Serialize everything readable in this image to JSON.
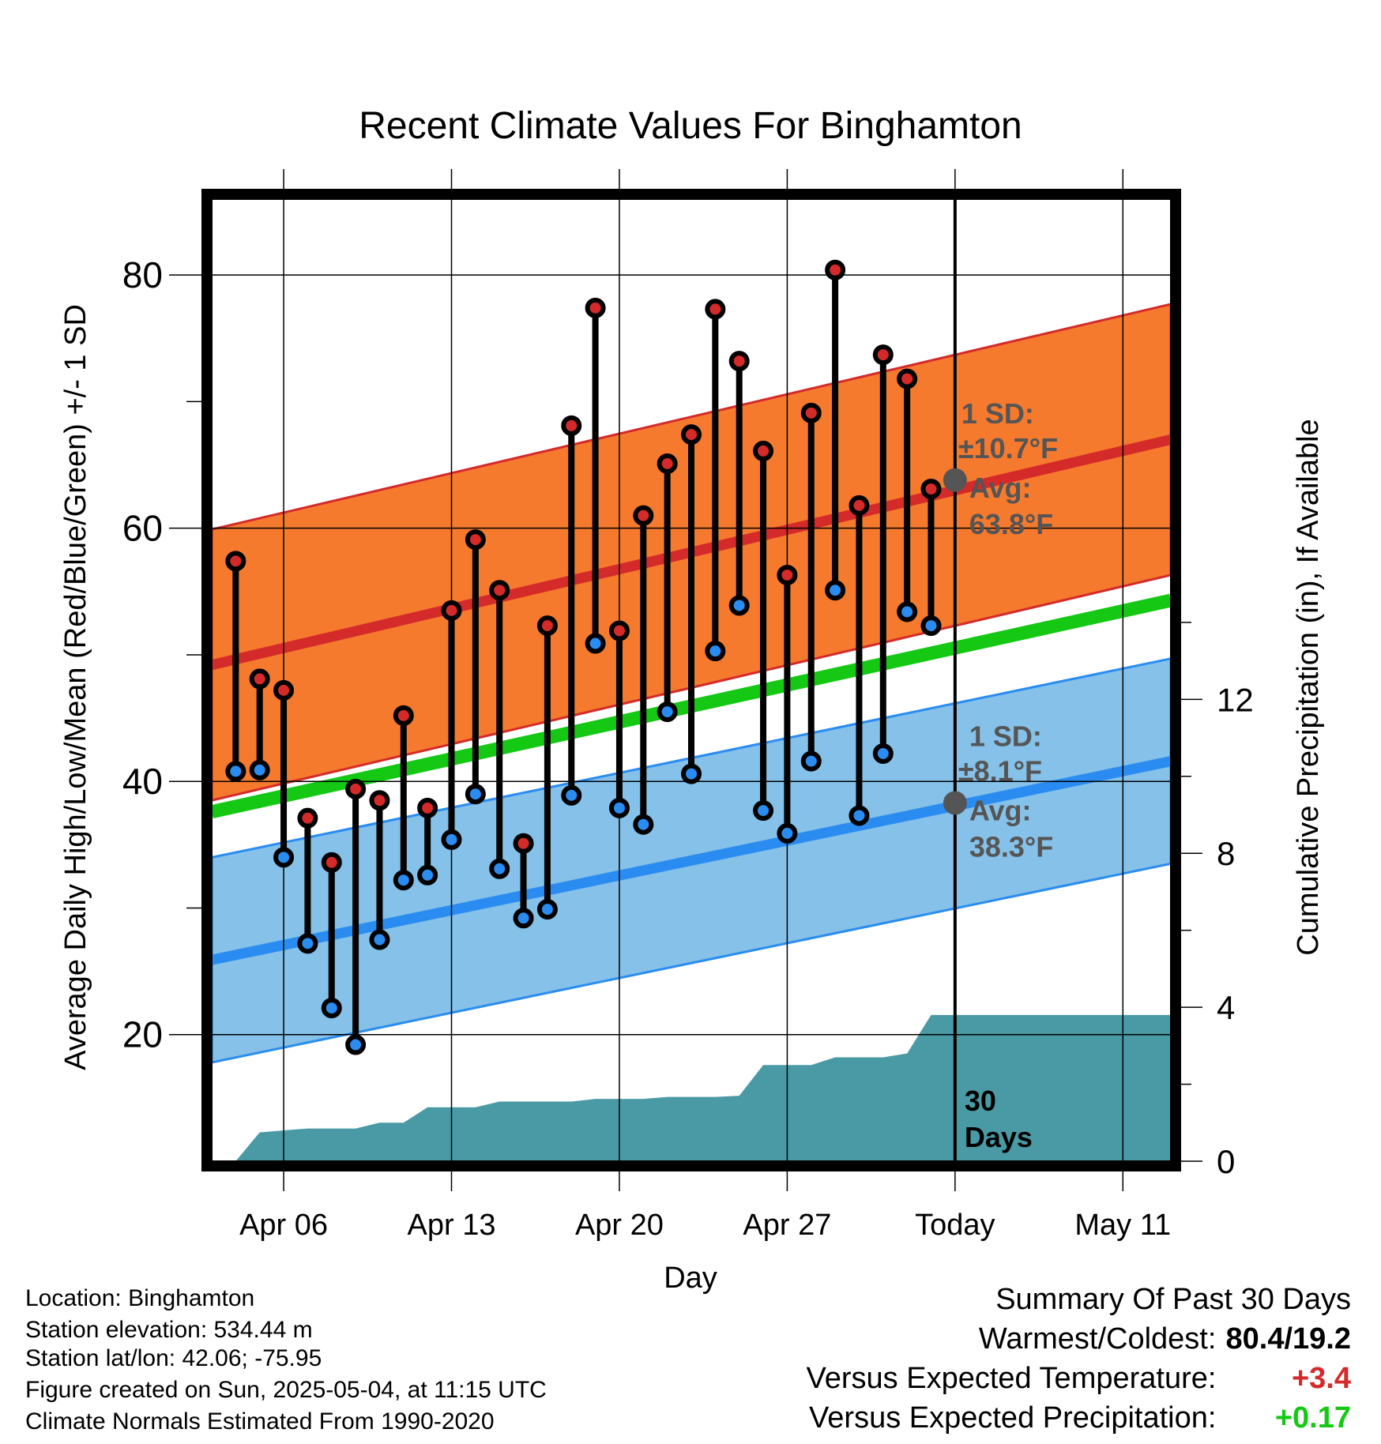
{
  "chart_data": {
    "type": "line",
    "title": "Recent Climate Values For Binghamton",
    "xlabel": "Day",
    "ylabel_left": "Average Daily High/Low/Mean (Red/Blue/Green) +/- 1 SD",
    "ylabel_right": "Cumulative Precipitation (in), If Available",
    "x_tick_labels": [
      "Apr 06",
      "Apr 13",
      "Apr 20",
      "Apr 27",
      "Today",
      "May 11"
    ],
    "x_tick_dates": [
      "2025-04-06",
      "2025-04-13",
      "2025-04-20",
      "2025-04-27",
      "2025-05-04",
      "2025-05-11"
    ],
    "xlim": [
      "2025-04-03",
      "2025-05-13"
    ],
    "ylim_left": [
      10,
      86
    ],
    "yticks_left": [
      20,
      40,
      60,
      80
    ],
    "ylim_right": [
      0,
      25
    ],
    "yticks_right": [
      0,
      4,
      8,
      12
    ],
    "grid": true,
    "today_label": "30\nDays",
    "observed": {
      "dates": [
        "2025-04-04",
        "2025-04-05",
        "2025-04-06",
        "2025-04-07",
        "2025-04-08",
        "2025-04-09",
        "2025-04-10",
        "2025-04-11",
        "2025-04-12",
        "2025-04-13",
        "2025-04-14",
        "2025-04-15",
        "2025-04-16",
        "2025-04-17",
        "2025-04-18",
        "2025-04-19",
        "2025-04-20",
        "2025-04-21",
        "2025-04-22",
        "2025-04-23",
        "2025-04-24",
        "2025-04-25",
        "2025-04-26",
        "2025-04-27",
        "2025-04-28",
        "2025-04-29",
        "2025-04-30",
        "2025-05-01",
        "2025-05-02",
        "2025-05-03"
      ],
      "high": [
        57.4,
        48.1,
        47.2,
        37.1,
        33.6,
        39.4,
        38.5,
        45.2,
        37.9,
        53.5,
        59.1,
        55.1,
        35.1,
        52.3,
        68.1,
        77.4,
        51.9,
        61.0,
        65.1,
        67.4,
        77.3,
        73.2,
        66.1,
        56.3,
        69.1,
        80.4,
        61.8,
        73.7,
        71.8,
        63.1
      ],
      "low": [
        40.8,
        40.9,
        34.0,
        27.2,
        22.1,
        19.2,
        27.5,
        32.2,
        32.6,
        35.4,
        39.0,
        33.1,
        29.2,
        29.9,
        38.9,
        50.9,
        37.9,
        36.6,
        45.5,
        40.6,
        50.3,
        53.9,
        37.7,
        35.9,
        41.6,
        55.1,
        37.3,
        42.2,
        53.4,
        52.3
      ]
    },
    "normals": {
      "dates": [
        "2025-04-03",
        "2025-05-13"
      ],
      "high_mean": [
        49.2,
        67.0
      ],
      "high_sd": 10.7,
      "low_mean": [
        25.9,
        41.6
      ],
      "low_sd": 8.1,
      "mean": [
        37.6,
        54.3
      ]
    },
    "annotations": [
      {
        "sd_label": "1 SD:",
        "sd_value": "±10.7°F",
        "avg_label": "Avg:",
        "avg_value": "63.8°F",
        "avg": 63.8
      },
      {
        "sd_label": "1 SD:",
        "sd_value": "±8.1°F",
        "avg_label": "Avg:",
        "avg_value": "38.3°F",
        "avg": 38.3
      }
    ],
    "precipitation": {
      "dates": [
        "2025-04-03",
        "2025-04-04",
        "2025-04-05",
        "2025-04-06",
        "2025-04-07",
        "2025-04-08",
        "2025-04-09",
        "2025-04-10",
        "2025-04-11",
        "2025-04-12",
        "2025-04-13",
        "2025-04-14",
        "2025-04-15",
        "2025-04-16",
        "2025-04-17",
        "2025-04-18",
        "2025-04-19",
        "2025-04-20",
        "2025-04-21",
        "2025-04-22",
        "2025-04-23",
        "2025-04-24",
        "2025-04-25",
        "2025-04-26",
        "2025-04-27",
        "2025-04-28",
        "2025-04-29",
        "2025-04-30",
        "2025-05-01",
        "2025-05-02",
        "2025-05-03",
        "2025-05-04",
        "2025-05-13"
      ],
      "cumulative": [
        0,
        0,
        0.75,
        0.8,
        0.85,
        0.85,
        0.85,
        1.0,
        1.0,
        1.4,
        1.4,
        1.4,
        1.55,
        1.55,
        1.55,
        1.55,
        1.62,
        1.62,
        1.62,
        1.67,
        1.67,
        1.67,
        1.7,
        2.5,
        2.5,
        2.5,
        2.7,
        2.7,
        2.7,
        2.8,
        3.8,
        3.8,
        3.8
      ]
    },
    "colors": {
      "high_band": "#f57a2e",
      "high_line": "#d42a2a",
      "low_band": "#85c1e8",
      "low_line": "#2a8cf0",
      "mean_line": "#14c814",
      "precip": "#4a9aa5",
      "high_dot": "#d42a2a",
      "low_dot": "#2a8cf0",
      "avg_dot": "#555555",
      "annotation": "#555555"
    }
  },
  "info": {
    "location": "Location: Binghamton",
    "elevation": "Station elevation: 534.44 m",
    "latlon": "Station lat/lon: 42.06; -75.95",
    "created": "Figure created on Sun, 2025-05-04, at 11:15 UTC",
    "normals": "Climate Normals Estimated From 1990-2020"
  },
  "summary": {
    "title": "Summary Of Past 30 Days",
    "warm_cold_label": "Warmest/Coldest:",
    "warm_cold_value": "80.4/19.2",
    "temp_label": "Versus Expected Temperature:",
    "temp_value": "+3.4",
    "temp_color": "#d42a2a",
    "precip_label": "Versus Expected Precipitation:",
    "precip_value": "+0.17",
    "precip_color": "#14c814"
  }
}
